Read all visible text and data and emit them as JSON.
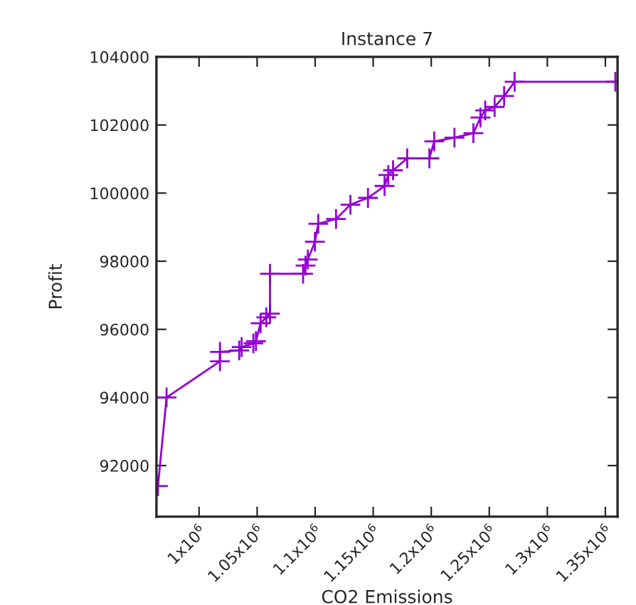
{
  "chart_data": {
    "type": "line",
    "title": "Instance 7",
    "xlabel": "CO2 Emissions",
    "ylabel": "Profit",
    "marker": "cross",
    "line_style": "solid",
    "grid": false,
    "legend": false,
    "xlim": [
      963300,
      1360500
    ],
    "ylim": [
      90500,
      104000
    ],
    "xticks": [
      {
        "value": 1000000,
        "label": "1x10$^{6}$"
      },
      {
        "value": 1050000,
        "label": "1.05x10$^{6}$"
      },
      {
        "value": 1100000,
        "label": "1.1x10$^{6}$"
      },
      {
        "value": 1150000,
        "label": "1.15x10$^{6}$"
      },
      {
        "value": 1200000,
        "label": "1.2x10$^{6}$"
      },
      {
        "value": 1250000,
        "label": "1.25x10$^{6}$"
      },
      {
        "value": 1300000,
        "label": "1.3x10$^{6}$"
      },
      {
        "value": 1350000,
        "label": "1.35x10$^{6}$"
      }
    ],
    "yticks": [
      92000,
      94000,
      96000,
      98000,
      100000,
      102000,
      104000
    ],
    "series": [
      {
        "color": "#9400d3",
        "x": [
          964600,
          972000,
          1018000,
          1018000,
          1034600,
          1036700,
          1046800,
          1049000,
          1053000,
          1057900,
          1061100,
          1061100,
          1089600,
          1091700,
          1093700,
          1099800,
          1102700,
          1118000,
          1130400,
          1145500,
          1159800,
          1163000,
          1167100,
          1179300,
          1198400,
          1202600,
          1220000,
          1236300,
          1242400,
          1246500,
          1254600,
          1262800,
          1271800,
          1358600
        ],
        "values": [
          91400,
          94000,
          95060,
          95340,
          95380,
          95480,
          95590,
          95650,
          96180,
          96350,
          96460,
          97630,
          97630,
          97870,
          98050,
          98570,
          99100,
          99240,
          99660,
          99860,
          100210,
          100530,
          100670,
          101020,
          101020,
          101520,
          101630,
          101760,
          102220,
          102430,
          102530,
          102850,
          103270,
          103270
        ]
      }
    ]
  }
}
